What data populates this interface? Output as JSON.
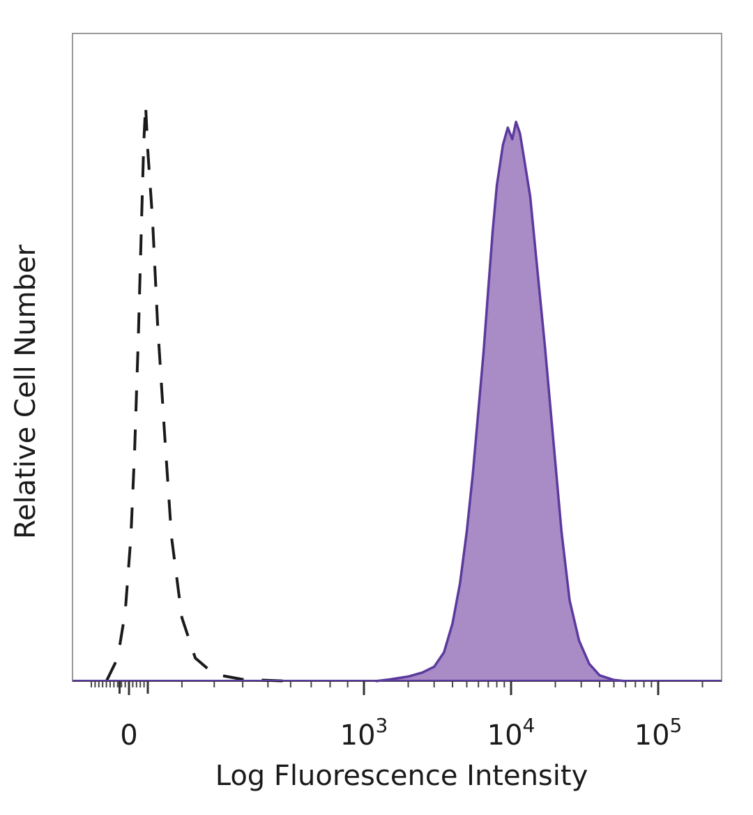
{
  "chart_data": {
    "type": "area",
    "title": "",
    "xlabel": "Log Fluorescence Intensity",
    "ylabel": "Relative Cell Number",
    "x_scale": "biexponential",
    "x_ticks": [
      {
        "value": 0,
        "base": "0",
        "exp": ""
      },
      {
        "value": 1000,
        "base": "10",
        "exp": "3"
      },
      {
        "value": 10000,
        "base": "10",
        "exp": "4"
      },
      {
        "value": 100000,
        "base": "10",
        "exp": "5"
      }
    ],
    "xlim": [
      -200,
      250000
    ],
    "ylim": [
      0,
      100
    ],
    "grid": false,
    "legend": "none",
    "series": [
      {
        "style": "dashed",
        "color": "#1a1a1a",
        "fill": "none",
        "points": [
          [
            -120,
            0
          ],
          [
            -60,
            4
          ],
          [
            -20,
            12
          ],
          [
            10,
            25
          ],
          [
            30,
            40
          ],
          [
            50,
            60
          ],
          [
            65,
            78
          ],
          [
            78,
            93
          ],
          [
            88,
            100
          ],
          [
            100,
            92
          ],
          [
            115,
            80
          ],
          [
            130,
            62
          ],
          [
            150,
            43
          ],
          [
            170,
            25
          ],
          [
            200,
            11
          ],
          [
            240,
            4
          ],
          [
            300,
            1.2
          ],
          [
            400,
            0.3
          ],
          [
            600,
            0
          ]
        ]
      },
      {
        "style": "solid",
        "color": "#5b3a9e",
        "fill": "#a98bc6",
        "points": [
          [
            1200,
            0
          ],
          [
            1500,
            0.3
          ],
          [
            2000,
            0.8
          ],
          [
            2500,
            1.5
          ],
          [
            3000,
            2.5
          ],
          [
            3500,
            5
          ],
          [
            4000,
            10
          ],
          [
            4500,
            17
          ],
          [
            5000,
            26
          ],
          [
            5500,
            36
          ],
          [
            6000,
            47
          ],
          [
            6500,
            57
          ],
          [
            7000,
            68
          ],
          [
            7500,
            78
          ],
          [
            8000,
            86
          ],
          [
            8800,
            93
          ],
          [
            9500,
            96
          ],
          [
            10200,
            94
          ],
          [
            10800,
            97
          ],
          [
            11500,
            95
          ],
          [
            12200,
            91
          ],
          [
            13500,
            84
          ],
          [
            15000,
            72
          ],
          [
            17000,
            58
          ],
          [
            19500,
            41
          ],
          [
            22000,
            26
          ],
          [
            25000,
            14
          ],
          [
            29000,
            7
          ],
          [
            34000,
            3
          ],
          [
            40000,
            1
          ],
          [
            50000,
            0.2
          ],
          [
            60000,
            0
          ]
        ]
      }
    ]
  }
}
